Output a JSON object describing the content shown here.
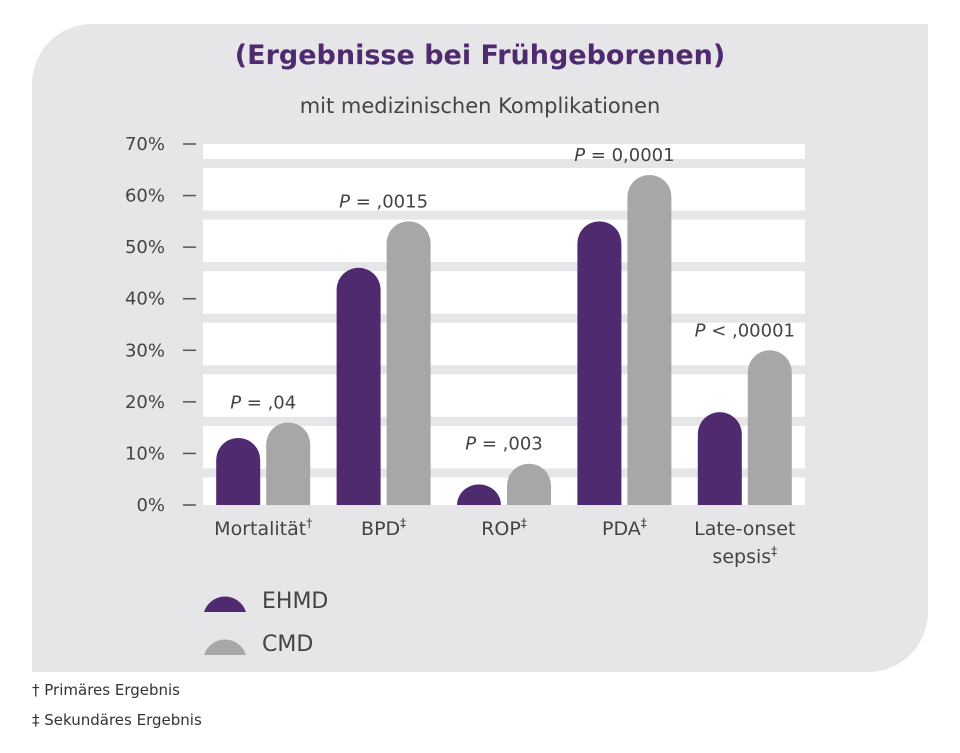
{
  "colors": {
    "ehmd": "#4f2a6e",
    "cmd": "#a7a6a9",
    "background": "#e6e5e7",
    "plot": "#ffffff"
  },
  "chart_data": {
    "type": "bar",
    "title": "(Ergebnisse bei Frühgeborenen)",
    "subtitle": "mit medizinischen Komplikationen",
    "ylim": [
      0,
      70
    ],
    "yticks": [
      "0%",
      "10%",
      "20%",
      "30%",
      "40%",
      "50%",
      "60%",
      "70%"
    ],
    "categories": [
      {
        "label": "Mortalität",
        "mark": "†"
      },
      {
        "label": "BPD",
        "mark": "‡"
      },
      {
        "label": "ROP",
        "mark": "‡"
      },
      {
        "label": "PDA",
        "mark": "‡"
      },
      {
        "label": "Late-onset",
        "label2": "sepsis",
        "mark": "‡"
      }
    ],
    "series": [
      {
        "name": "EHMD",
        "values": [
          13,
          46,
          4,
          55,
          18
        ]
      },
      {
        "name": "CMD",
        "values": [
          16,
          55,
          8,
          64,
          30
        ]
      }
    ],
    "p_values": [
      {
        "p": "P",
        "rest": " = ,04"
      },
      {
        "p": "P",
        "rest": " = ,0015"
      },
      {
        "p": "P",
        "rest": " = ,003"
      },
      {
        "p": "P",
        "rest": " = 0,0001"
      },
      {
        "p": "P",
        "rest": " < ,00001"
      }
    ],
    "grid": true,
    "legend_position": "bottom-left"
  },
  "footnotes": [
    "† Primäres Ergebnis",
    "‡ Sekundäres Ergebnis"
  ]
}
